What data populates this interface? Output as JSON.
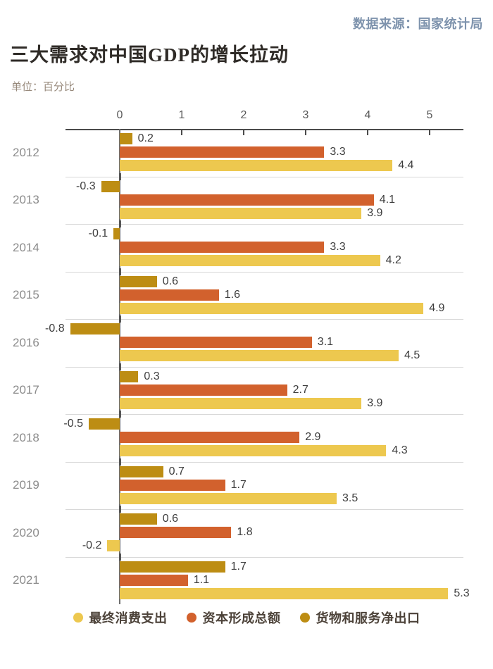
{
  "header": {
    "source": "数据来源：国家统计局",
    "title": "三大需求对中国GDP的增长拉动",
    "unit": "单位：百分比"
  },
  "chart_data": {
    "type": "bar",
    "orientation": "horizontal",
    "title": "三大需求对中国GDP的增长拉动",
    "unit_label": "单位：百分比",
    "source_label": "数据来源：国家统计局",
    "categories": [
      "2012",
      "2013",
      "2014",
      "2015",
      "2016",
      "2017",
      "2018",
      "2019",
      "2020",
      "2021"
    ],
    "series": [
      {
        "name": "最终消费支出",
        "color": "#EDC84F",
        "values": [
          4.4,
          3.9,
          4.2,
          4.9,
          4.5,
          3.9,
          4.3,
          3.5,
          -0.2,
          5.3
        ]
      },
      {
        "name": "资本形成总额",
        "color": "#D2612D",
        "values": [
          3.3,
          4.1,
          3.3,
          1.6,
          3.1,
          2.7,
          2.9,
          1.7,
          1.8,
          1.1
        ]
      },
      {
        "name": "货物和服务净出口",
        "color": "#BD8D13",
        "values": [
          0.2,
          -0.3,
          -0.1,
          0.6,
          -0.8,
          0.3,
          -0.5,
          0.7,
          0.6,
          1.7
        ]
      }
    ],
    "bar_order_top_to_bottom": [
      "货物和服务净出口",
      "资本形成总额",
      "最终消费支出"
    ],
    "x_ticks": [
      0,
      1,
      2,
      3,
      4,
      5
    ],
    "xlim": [
      -0.875,
      5.55
    ],
    "value_labels": "one-decimal, outside bar end",
    "grid": "horizontal row separators only",
    "legend_position": "bottom-center"
  },
  "colors": {
    "consumption": "#EDC84F",
    "capital": "#D2612D",
    "net_exports": "#BD8D13",
    "axis": "#4B4B4B",
    "zero_line": "#6E6E6E",
    "separator": "#D8D8D8",
    "year_text": "#8C8C8C",
    "value_text": "#3D3D3D",
    "title_text": "#2F2B27",
    "source_text": "#7E93AD",
    "unit_text": "#97897B",
    "legend_text": "#4C4239"
  }
}
